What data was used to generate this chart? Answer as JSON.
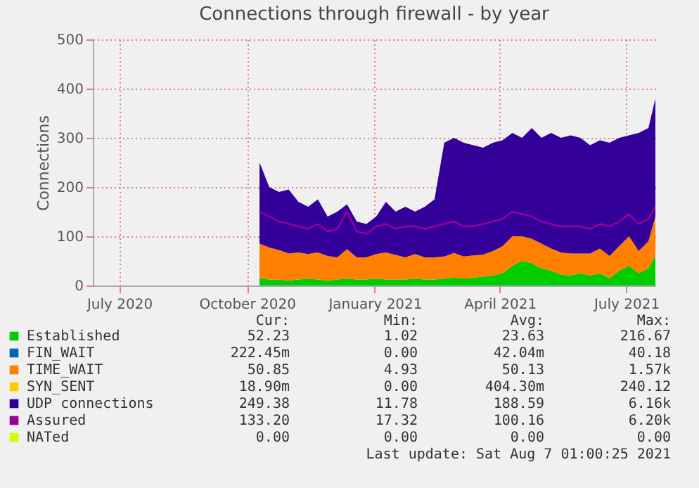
{
  "chart_data": {
    "type": "area",
    "title": "Connections through firewall - by year",
    "ylabel": "Connections",
    "stacked": true,
    "grid": true,
    "legend": "bottom",
    "x": [
      "2020-10-10",
      "2020-10-17",
      "2020-10-24",
      "2020-10-31",
      "2020-11-07",
      "2020-11-14",
      "2020-11-21",
      "2020-11-28",
      "2020-12-05",
      "2020-12-12",
      "2020-12-19",
      "2020-12-26",
      "2021-01-02",
      "2021-01-09",
      "2021-01-16",
      "2021-01-23",
      "2021-01-30",
      "2021-02-06",
      "2021-02-13",
      "2021-02-20",
      "2021-02-27",
      "2021-03-06",
      "2021-03-13",
      "2021-03-20",
      "2021-03-27",
      "2021-04-03",
      "2021-04-10",
      "2021-04-17",
      "2021-04-24",
      "2021-05-01",
      "2021-05-08",
      "2021-05-15",
      "2021-05-22",
      "2021-05-29",
      "2021-06-05",
      "2021-06-12",
      "2021-06-19",
      "2021-06-26",
      "2021-07-03",
      "2021-07-10",
      "2021-07-17",
      "2021-07-22"
    ],
    "xlim": [
      "2020-06-12",
      "2021-07-22"
    ],
    "xticks": [
      {
        "value": "2020-07-01",
        "label": "July 2020"
      },
      {
        "value": "2020-10-01",
        "label": "October 2020"
      },
      {
        "value": "2021-01-01",
        "label": "January 2021"
      },
      {
        "value": "2021-04-01",
        "label": "April 2021"
      },
      {
        "value": "2021-07-01",
        "label": "July 2021"
      }
    ],
    "ylim": [
      0,
      500
    ],
    "yticks": [
      0,
      100,
      200,
      300,
      400,
      500
    ],
    "series": [
      {
        "name": "Established",
        "color": "#00cc00",
        "values": [
          15,
          12,
          12,
          10,
          12,
          14,
          12,
          10,
          12,
          14,
          12,
          12,
          14,
          12,
          12,
          12,
          14,
          12,
          12,
          14,
          16,
          14,
          16,
          18,
          20,
          25,
          40,
          50,
          45,
          35,
          30,
          22,
          20,
          25,
          20,
          25,
          15,
          30,
          40,
          25,
          35,
          60
        ]
      },
      {
        "name": "FIN_WAIT",
        "color": "#0066b3",
        "values": [
          null,
          null,
          null,
          null,
          null,
          null,
          null,
          null,
          null,
          null,
          null,
          null,
          null,
          null,
          null,
          null,
          null,
          null,
          null,
          null,
          null,
          null,
          null,
          null,
          null,
          null,
          null,
          null,
          null,
          null,
          null,
          null,
          null,
          null,
          null,
          null,
          null,
          null,
          null,
          null,
          null,
          null
        ]
      },
      {
        "name": "TIME_WAIT",
        "color": "#ff8000",
        "values": [
          70,
          65,
          60,
          55,
          55,
          50,
          55,
          50,
          45,
          60,
          45,
          45,
          50,
          55,
          50,
          45,
          50,
          45,
          45,
          45,
          50,
          45,
          45,
          45,
          50,
          55,
          60,
          50,
          50,
          50,
          45,
          45,
          45,
          40,
          45,
          50,
          45,
          50,
          60,
          45,
          55,
          80
        ]
      },
      {
        "name": "SYN_SENT",
        "color": "#ffcc00",
        "values": [
          null,
          null,
          null,
          null,
          null,
          null,
          null,
          null,
          null,
          null,
          null,
          null,
          null,
          null,
          null,
          null,
          null,
          null,
          null,
          null,
          null,
          null,
          null,
          null,
          null,
          null,
          null,
          null,
          null,
          null,
          null,
          null,
          null,
          null,
          null,
          null,
          null,
          null,
          null,
          null,
          null,
          null
        ]
      },
      {
        "name": "UDP connections",
        "color": "#330099",
        "values": [
          165,
          123,
          118,
          130,
          103,
          96,
          108,
          80,
          93,
          91,
          73,
          68,
          76,
          103,
          88,
          103,
          86,
          103,
          118,
          231,
          234,
          231,
          224,
          217,
          220,
          215,
          210,
          200,
          225,
          215,
          235,
          233,
          240,
          235,
          220,
          220,
          230,
          220,
          205,
          240,
          230,
          240
        ]
      },
      {
        "name": "Assured",
        "color": "#990099",
        "type": "line",
        "values": [
          150,
          140,
          130,
          125,
          120,
          115,
          125,
          110,
          115,
          150,
          110,
          105,
          120,
          125,
          115,
          120,
          120,
          115,
          120,
          125,
          130,
          120,
          120,
          125,
          130,
          135,
          150,
          145,
          140,
          130,
          125,
          120,
          120,
          120,
          115,
          125,
          120,
          130,
          145,
          125,
          135,
          160
        ]
      },
      {
        "name": "NATed",
        "color": "#ccff00",
        "values": [
          null,
          null,
          null,
          null,
          null,
          null,
          null,
          null,
          null,
          null,
          null,
          null,
          null,
          null,
          null,
          null,
          null,
          null,
          null,
          null,
          null,
          null,
          null,
          null,
          null,
          null,
          null,
          null,
          null,
          null,
          null,
          null,
          null,
          null,
          null,
          null,
          null,
          null,
          null,
          null,
          null,
          null
        ]
      }
    ],
    "annotations": [
      "Cur:",
      "Min:",
      "Avg:",
      "Max:",
      "52.23",
      "1.02",
      "23.63",
      "216.67",
      "222.45m",
      "0.00",
      "42.04m",
      "40.18",
      "50.85",
      "4.93",
      "50.13",
      "1.57k",
      "18.90m",
      "0.00",
      "404.30m",
      "240.12",
      "249.38",
      "11.78",
      "188.59",
      "6.16k",
      "133.20",
      "17.32",
      "100.16",
      "6.20k",
      "0.00",
      "0.00",
      "0.00",
      "0.00",
      "Last update: Sat Aug  7 01:00:25 2021"
    ]
  }
}
